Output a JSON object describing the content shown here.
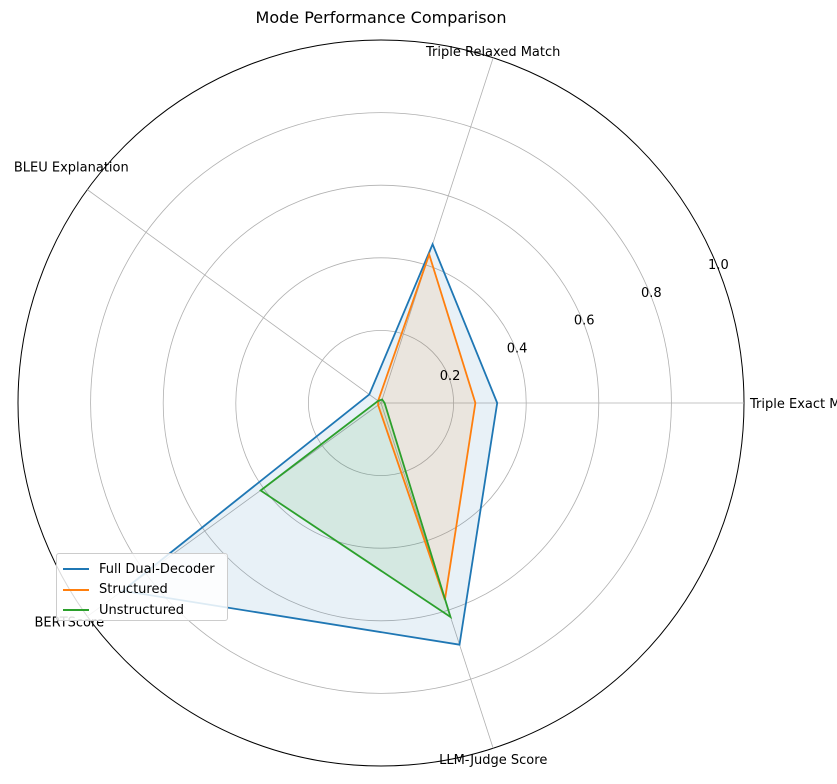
{
  "chart_data": {
    "type": "radar",
    "title": "Mode Performance Comparison",
    "categories": [
      "Triple Exact Match",
      "Triple Relaxed Match",
      "BLEU Explanation",
      "BERTScore",
      "LLM-Judge Score"
    ],
    "rticks": [
      "0.2",
      "0.4",
      "0.6",
      "0.8",
      "1.0"
    ],
    "rlim": [
      0,
      1.0
    ],
    "grid": true,
    "legend_position": "lower-left",
    "series": [
      {
        "name": "Full Dual-Decoder",
        "color": "#1f77b4",
        "values": [
          0.32,
          0.46,
          0.04,
          0.88,
          0.7
        ]
      },
      {
        "name": "Structured",
        "color": "#ff7f0e",
        "values": [
          0.26,
          0.43,
          0.01,
          0.01,
          0.57
        ]
      },
      {
        "name": "Unstructured",
        "color": "#2ca02c",
        "values": [
          0.01,
          0.01,
          0.01,
          0.41,
          0.62
        ]
      }
    ]
  }
}
